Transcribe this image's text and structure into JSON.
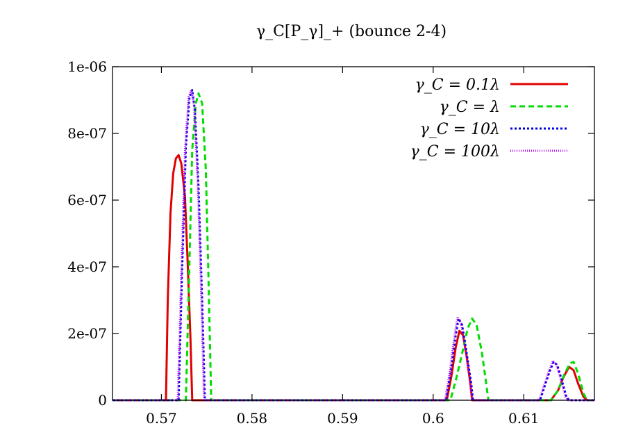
{
  "chart_data": {
    "type": "line",
    "title": "γ_C[P_γ]_+ (bounce 2-4)",
    "xlabel": "",
    "ylabel": "",
    "xlim": [
      0.5646,
      0.6178
    ],
    "ylim": [
      0,
      1e-06
    ],
    "x_ticks": [
      0.57,
      0.58,
      0.59,
      0.6,
      0.61
    ],
    "x_tick_labels": [
      "0.57",
      "0.58",
      "0.59",
      "0.6",
      "0.61"
    ],
    "y_ticks": [
      0,
      2e-07,
      4e-07,
      6e-07,
      8e-07,
      1e-06
    ],
    "y_tick_labels": [
      "0",
      "2e-07",
      "4e-07",
      "6e-07",
      "8e-07",
      "1e-06"
    ],
    "grid": false,
    "legend_position": "top-right",
    "series": [
      {
        "name": "γ_C = 0.1λ",
        "color": "#e00000",
        "dash": "solid",
        "points": [
          [
            0.5646,
            0
          ],
          [
            0.5705,
            0
          ],
          [
            0.5707,
            3e-07
          ],
          [
            0.571,
            5.6e-07
          ],
          [
            0.5713,
            6.8e-07
          ],
          [
            0.5716,
            7.25e-07
          ],
          [
            0.5719,
            7.35e-07
          ],
          [
            0.5722,
            7.1e-07
          ],
          [
            0.5726,
            6.1e-07
          ],
          [
            0.5729,
            4.1e-07
          ],
          [
            0.5732,
            1.9e-07
          ],
          [
            0.5734,
            0
          ],
          [
            0.6015,
            0
          ],
          [
            0.602,
            7e-08
          ],
          [
            0.6025,
            1.6e-07
          ],
          [
            0.6029,
            2.08e-07
          ],
          [
            0.6033,
            1.95e-07
          ],
          [
            0.6037,
            1.3e-07
          ],
          [
            0.6041,
            5e-08
          ],
          [
            0.6043,
            0
          ],
          [
            0.613,
            0
          ],
          [
            0.6138,
            3e-08
          ],
          [
            0.6144,
            7e-08
          ],
          [
            0.615,
            1e-07
          ],
          [
            0.6155,
            9e-08
          ],
          [
            0.616,
            5e-08
          ],
          [
            0.6166,
            1e-08
          ],
          [
            0.617,
            0
          ],
          [
            0.6178,
            0
          ]
        ]
      },
      {
        "name": "γ_C = λ",
        "color": "#00dd00",
        "dash": "8,5",
        "points": [
          [
            0.5646,
            0
          ],
          [
            0.5727,
            0
          ],
          [
            0.5731,
            4.2e-07
          ],
          [
            0.5734,
            7.5e-07
          ],
          [
            0.5738,
            8.9e-07
          ],
          [
            0.5741,
            9.2e-07
          ],
          [
            0.5745,
            8.9e-07
          ],
          [
            0.5749,
            6.9e-07
          ],
          [
            0.5752,
            3.6e-07
          ],
          [
            0.5755,
            0
          ],
          [
            0.6019,
            0
          ],
          [
            0.6025,
            6e-08
          ],
          [
            0.6032,
            1.4e-07
          ],
          [
            0.6038,
            2.15e-07
          ],
          [
            0.6043,
            2.45e-07
          ],
          [
            0.6048,
            2.25e-07
          ],
          [
            0.6054,
            1.4e-07
          ],
          [
            0.6059,
            4e-08
          ],
          [
            0.6061,
            0
          ],
          [
            0.613,
            0
          ],
          [
            0.6138,
            3e-08
          ],
          [
            0.6145,
            8e-08
          ],
          [
            0.6151,
            1.1e-07
          ],
          [
            0.6155,
            1.15e-07
          ],
          [
            0.616,
            8e-08
          ],
          [
            0.6166,
            2e-08
          ],
          [
            0.617,
            0
          ],
          [
            0.6178,
            0
          ]
        ]
      },
      {
        "name": "γ_C = 10λ",
        "color": "#0000e0",
        "dash": "3,3",
        "points": [
          [
            0.5646,
            0
          ],
          [
            0.5719,
            0
          ],
          [
            0.5723,
            4e-07
          ],
          [
            0.5727,
            7.6e-07
          ],
          [
            0.5731,
            9.1e-07
          ],
          [
            0.5734,
            9.3e-07
          ],
          [
            0.5737,
            8.7e-07
          ],
          [
            0.5741,
            6.4e-07
          ],
          [
            0.5745,
            3e-07
          ],
          [
            0.5748,
            0
          ],
          [
            0.6014,
            0
          ],
          [
            0.6019,
            8e-08
          ],
          [
            0.6024,
            1.8e-07
          ],
          [
            0.6028,
            2.45e-07
          ],
          [
            0.6032,
            2.25e-07
          ],
          [
            0.6037,
            1.4e-07
          ],
          [
            0.6042,
            5e-08
          ],
          [
            0.6044,
            0
          ],
          [
            0.6118,
            0
          ],
          [
            0.6124,
            5e-08
          ],
          [
            0.6129,
            9e-08
          ],
          [
            0.6133,
            1.15e-07
          ],
          [
            0.6137,
            1.05e-07
          ],
          [
            0.6142,
            6e-08
          ],
          [
            0.6147,
            1e-08
          ],
          [
            0.615,
            0
          ],
          [
            0.6178,
            0
          ]
        ]
      },
      {
        "name": "γ_C = 100λ",
        "color": "#c000ff",
        "dash": "1,2",
        "points": [
          [
            0.5646,
            0
          ],
          [
            0.5718,
            0
          ],
          [
            0.5722,
            3.8e-07
          ],
          [
            0.5726,
            7.5e-07
          ],
          [
            0.573,
            9.1e-07
          ],
          [
            0.5733,
            9.3e-07
          ],
          [
            0.5736,
            8.8e-07
          ],
          [
            0.574,
            6.6e-07
          ],
          [
            0.5744,
            3.1e-07
          ],
          [
            0.5747,
            0
          ],
          [
            0.6013,
            0
          ],
          [
            0.6018,
            8e-08
          ],
          [
            0.6023,
            1.85e-07
          ],
          [
            0.6027,
            2.5e-07
          ],
          [
            0.6031,
            2.3e-07
          ],
          [
            0.6036,
            1.45e-07
          ],
          [
            0.6041,
            5e-08
          ],
          [
            0.6043,
            0
          ],
          [
            0.6117,
            0
          ],
          [
            0.6123,
            5e-08
          ],
          [
            0.6128,
            9e-08
          ],
          [
            0.6132,
            1.18e-07
          ],
          [
            0.6136,
            1.08e-07
          ],
          [
            0.6141,
            6e-08
          ],
          [
            0.6146,
            1e-08
          ],
          [
            0.6149,
            0
          ],
          [
            0.6178,
            0
          ]
        ]
      }
    ]
  }
}
